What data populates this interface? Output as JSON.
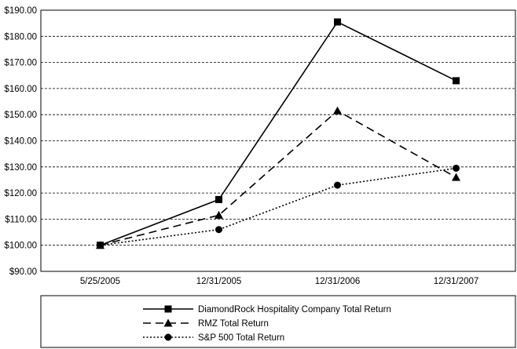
{
  "chart_data": {
    "type": "line",
    "title": "",
    "xlabel": "",
    "ylabel": "",
    "categories": [
      "5/25/2005",
      "12/31/2005",
      "12/31/2006",
      "12/31/2007"
    ],
    "y_ticks": [
      "$90.00",
      "$100.00",
      "$110.00",
      "$120.00",
      "$130.00",
      "$140.00",
      "$150.00",
      "$160.00",
      "$170.00",
      "$180.00",
      "$190.00"
    ],
    "ylim": [
      90,
      190
    ],
    "grid": "horizontal dashed",
    "legend_placement": "bottom",
    "series": [
      {
        "name": "DiamondRock Hospitality Company Total Return",
        "line": "solid",
        "marker": "square",
        "values": [
          100.0,
          117.5,
          185.5,
          163.0
        ]
      },
      {
        "name": "RMZ Total Return",
        "line": "dashed",
        "marker": "triangle",
        "values": [
          100.0,
          111.5,
          151.5,
          126.0
        ]
      },
      {
        "name": "S&P 500 Total Return",
        "line": "dotted",
        "marker": "circle",
        "values": [
          100.0,
          106.0,
          123.0,
          129.5
        ]
      }
    ]
  }
}
